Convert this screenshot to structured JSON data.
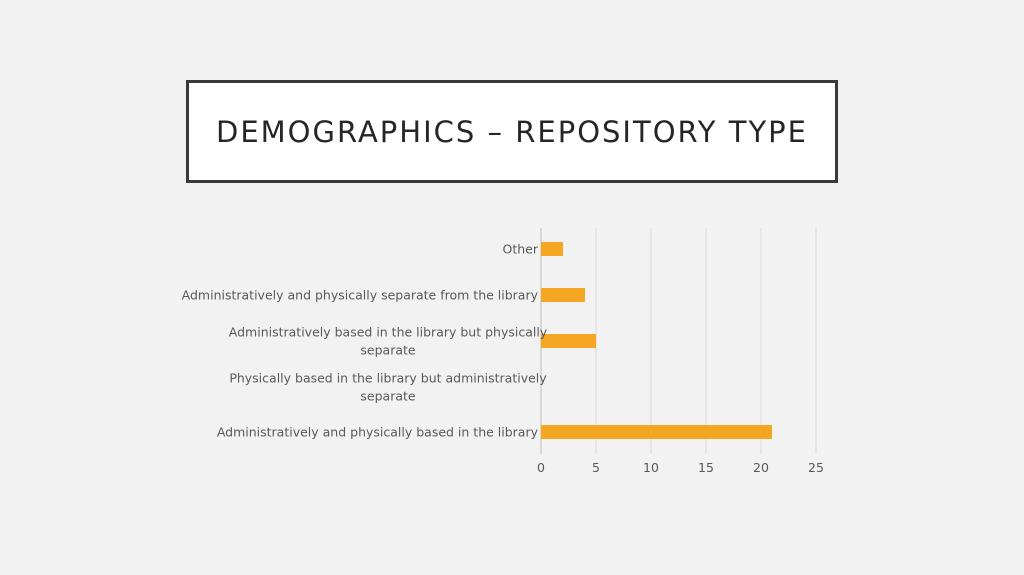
{
  "slide": {
    "title": "DEMOGRAPHICS – REPOSITORY TYPE"
  },
  "chart_data": {
    "type": "bar",
    "orientation": "horizontal",
    "categories": [
      "Administratively and physically based in the library",
      "Physically based in the library but administratively separate",
      "Administratively based in the library but physically separate",
      "Administratively and physically separate from the library",
      "Other"
    ],
    "category_label_lines": [
      [
        "Administratively and physically based in the library"
      ],
      [
        "Physically based in the library but administratively",
        "separate"
      ],
      [
        "Administratively based in the library but physically",
        "separate"
      ],
      [
        "Administratively and physically separate from the library"
      ],
      [
        "Other"
      ]
    ],
    "values": [
      21,
      0,
      5,
      4,
      2
    ],
    "xlim": [
      0,
      25
    ],
    "xticks": [
      0,
      5,
      10,
      15,
      20,
      25
    ],
    "grid": "vertical",
    "bar_color": "#f5a623",
    "grid_color": "#d9d9d9",
    "legend": "none"
  }
}
